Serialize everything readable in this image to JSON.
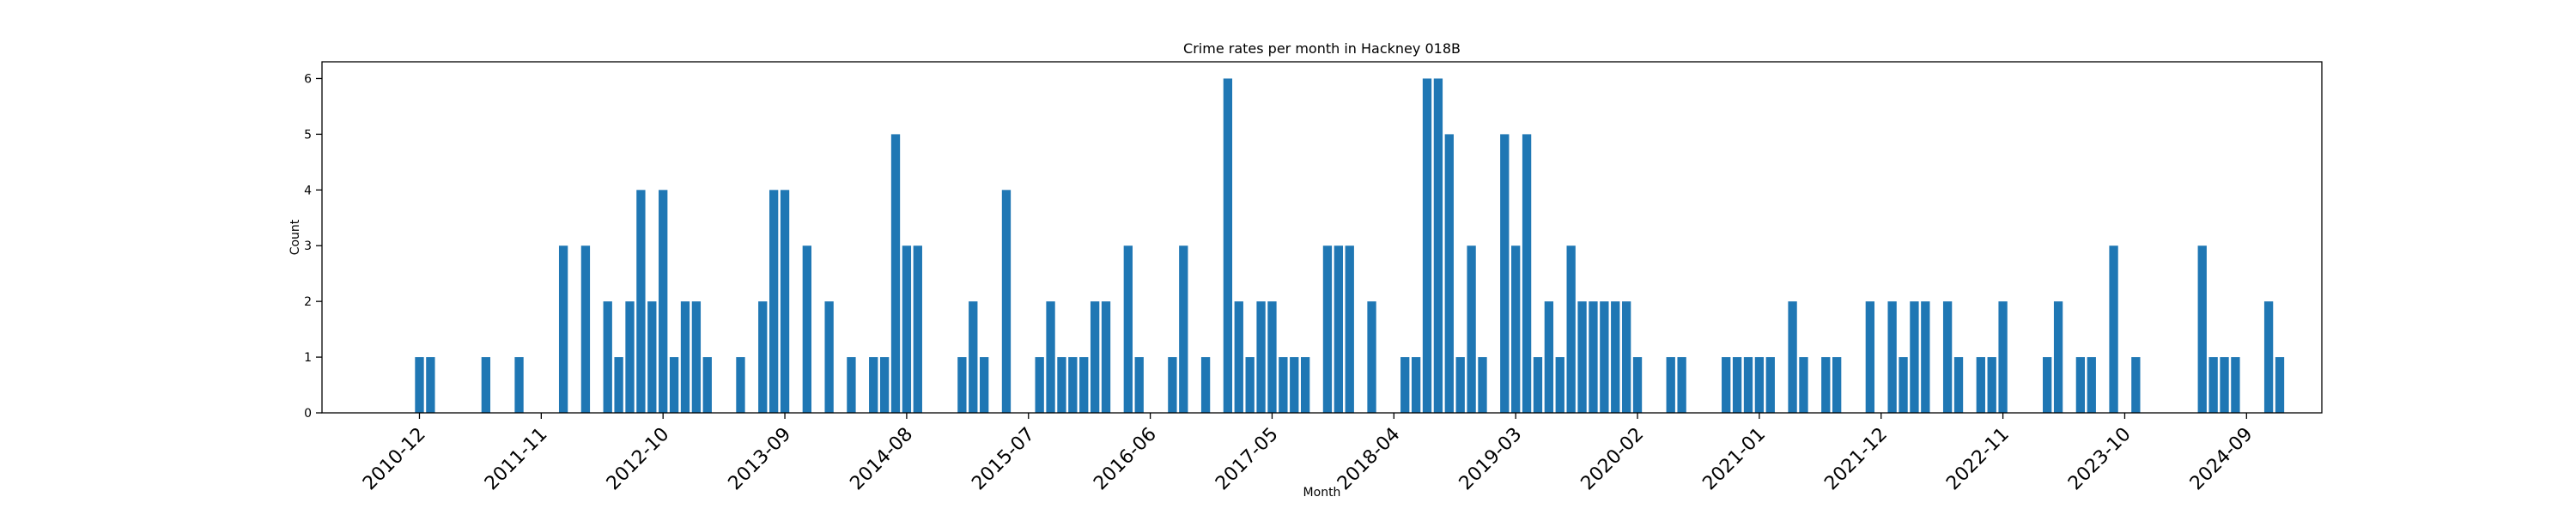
{
  "chart_data": {
    "type": "bar",
    "title": "Crime rates per month in Hackney 018B",
    "xlabel": "Month",
    "ylabel": "Count",
    "ylim": [
      0,
      6.3
    ],
    "yticks": [
      0,
      1,
      2,
      3,
      4,
      5,
      6
    ],
    "x_tick_labels": [
      "2010-12",
      "2011-11",
      "2012-10",
      "2013-09",
      "2014-08",
      "2015-07",
      "2016-06",
      "2017-05",
      "2018-04",
      "2019-03",
      "2020-02",
      "2021-01",
      "2021-12",
      "2022-11",
      "2023-10",
      "2024-09"
    ],
    "grid": false,
    "bar_color": "#1f77b4",
    "series": [
      {
        "months": [
          "2010-12",
          "2011-01",
          "2011-06",
          "2011-09",
          "2012-01",
          "2012-03",
          "2012-05",
          "2012-06",
          "2012-07",
          "2012-08",
          "2012-09",
          "2012-10",
          "2012-11",
          "2012-12",
          "2013-01",
          "2013-02",
          "2013-05",
          "2013-07",
          "2013-08",
          "2013-09",
          "2013-11",
          "2014-01",
          "2014-03",
          "2014-05",
          "2014-06",
          "2014-07",
          "2014-08",
          "2014-09",
          "2015-01",
          "2015-02",
          "2015-03",
          "2015-05",
          "2015-08",
          "2015-09",
          "2015-10",
          "2015-11",
          "2015-12",
          "2016-01",
          "2016-02",
          "2016-04",
          "2016-05",
          "2016-08",
          "2016-09",
          "2016-11",
          "2017-01",
          "2017-02",
          "2017-03",
          "2017-04",
          "2017-05",
          "2017-06",
          "2017-07",
          "2017-08",
          "2017-10",
          "2017-11",
          "2017-12",
          "2018-02",
          "2018-05",
          "2018-06",
          "2018-07",
          "2018-08",
          "2018-09",
          "2018-10",
          "2018-11",
          "2018-12",
          "2019-02",
          "2019-03",
          "2019-04",
          "2019-05",
          "2019-06",
          "2019-07",
          "2019-08",
          "2019-09",
          "2019-10",
          "2019-11",
          "2019-12",
          "2020-01",
          "2020-02",
          "2020-05",
          "2020-06",
          "2020-10",
          "2020-11",
          "2020-12",
          "2021-01",
          "2021-02",
          "2021-04",
          "2021-05",
          "2021-07",
          "2021-08",
          "2021-11",
          "2022-01",
          "2022-02",
          "2022-03",
          "2022-04",
          "2022-06",
          "2022-07",
          "2022-09",
          "2022-10",
          "2022-11",
          "2023-03",
          "2023-04",
          "2023-06",
          "2023-07",
          "2023-09",
          "2023-11",
          "2024-05",
          "2024-06",
          "2024-07",
          "2024-08",
          "2024-11",
          "2024-12"
        ],
        "values": [
          1,
          1,
          1,
          1,
          3,
          3,
          2,
          1,
          2,
          4,
          2,
          4,
          1,
          2,
          2,
          1,
          1,
          2,
          4,
          4,
          3,
          2,
          1,
          1,
          1,
          5,
          3,
          3,
          1,
          2,
          1,
          4,
          1,
          2,
          1,
          1,
          1,
          2,
          2,
          3,
          1,
          1,
          3,
          1,
          6,
          2,
          1,
          2,
          2,
          1,
          1,
          1,
          3,
          3,
          3,
          2,
          1,
          1,
          6,
          6,
          5,
          1,
          3,
          1,
          5,
          3,
          5,
          1,
          2,
          1,
          3,
          2,
          2,
          2,
          2,
          2,
          1,
          1,
          1,
          1,
          1,
          1,
          1,
          1,
          2,
          1,
          1,
          1,
          2,
          2,
          1,
          2,
          2,
          2,
          1,
          1,
          1,
          2,
          1,
          2,
          1,
          1,
          3,
          1,
          3,
          1,
          1,
          1,
          2,
          1
        ]
      }
    ]
  }
}
